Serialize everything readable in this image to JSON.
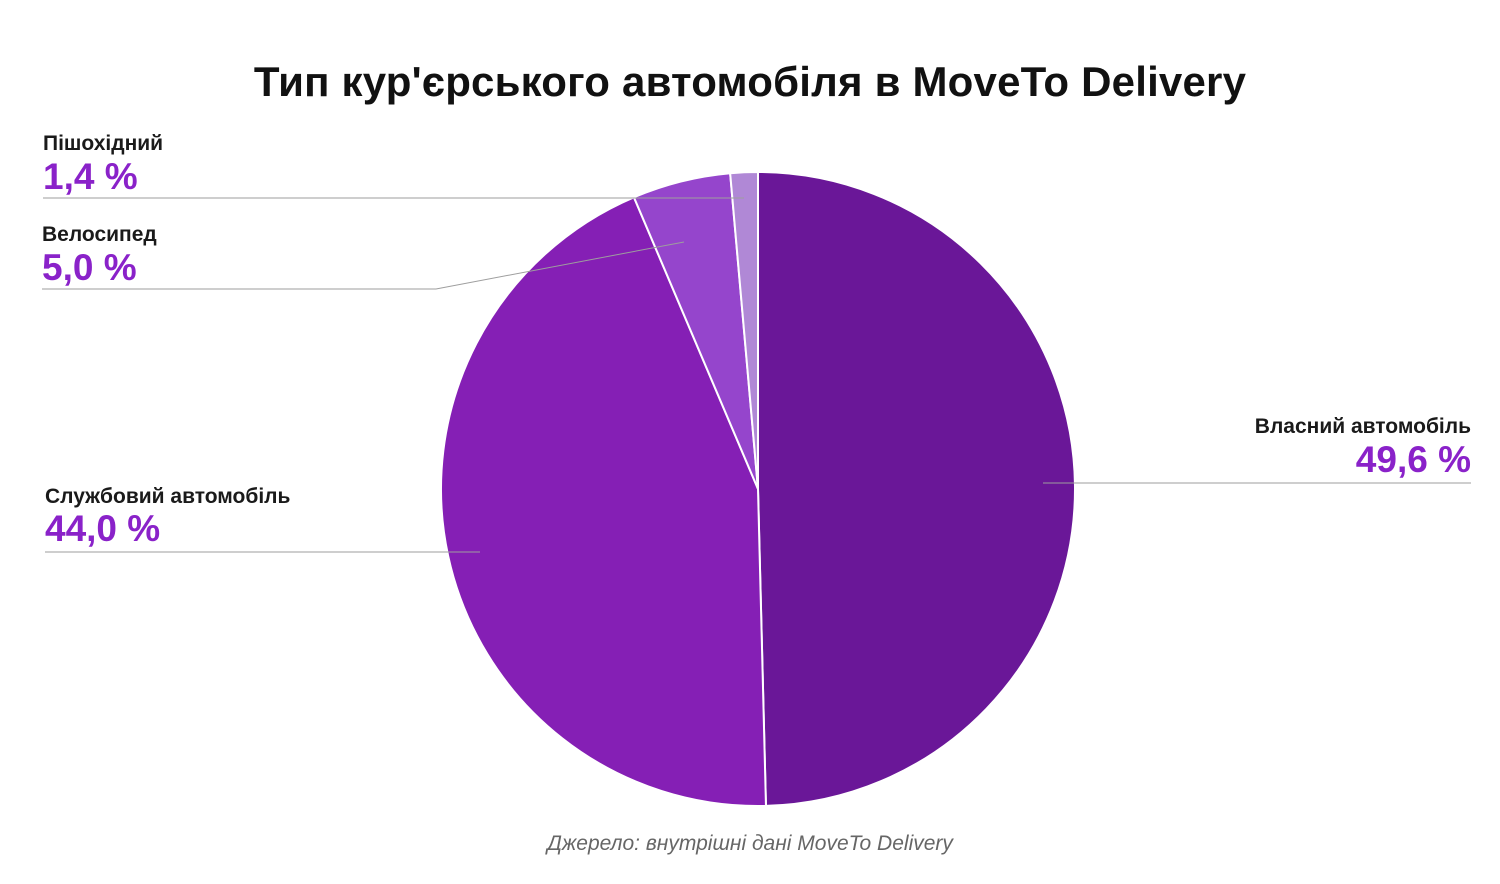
{
  "chart_data": {
    "type": "pie",
    "title": "Тип кур'єрського автомобіля в MoveTo Delivery",
    "source": "Джерело: внутрішні дані MoveTo Delivery",
    "start_angle_deg": 0,
    "direction": "clockwise",
    "slices": [
      {
        "label": "Власний автомобіль",
        "value": 49.6,
        "display": "49,6 %",
        "color": "#6a1798",
        "name": "slice-vlasnyi"
      },
      {
        "label": "Службовий автомобіль",
        "value": 44.0,
        "display": "44,0 %",
        "color": "#851fb5",
        "name": "slice-sluzhbovyi"
      },
      {
        "label": "Велосипед",
        "value": 5.0,
        "display": "5,0 %",
        "color": "#9545cc",
        "name": "slice-velosyped"
      },
      {
        "label": "Пішохідний",
        "value": 1.4,
        "display": "1,4 %",
        "color": "#b088d6",
        "name": "slice-pishokhidnyi"
      }
    ],
    "label_color": "#8a22c9",
    "leader_line_color": "#9e9e9e"
  }
}
